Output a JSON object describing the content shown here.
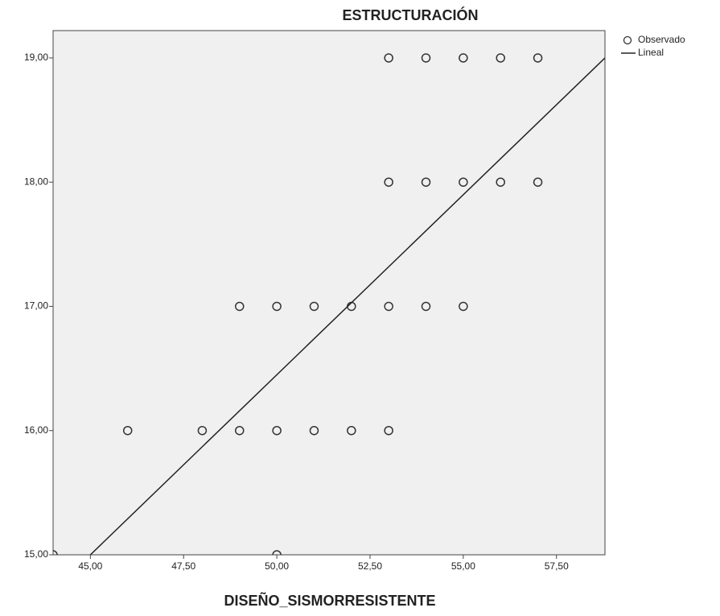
{
  "chart_data": {
    "type": "scatter",
    "title": "ESTRUCTURACIÓN",
    "x_label": "DISEÑO_SISMORRESISTENTE",
    "series": [
      {
        "name": "Observado",
        "color": "#333333",
        "x": [
          53,
          54,
          55,
          56,
          57,
          53,
          54,
          55,
          56,
          57,
          49,
          50,
          51,
          52,
          53,
          54,
          55,
          46,
          48,
          49,
          50,
          51,
          52,
          53,
          44,
          50
        ],
        "y": [
          19,
          19,
          19,
          19,
          19,
          18,
          18,
          18,
          18,
          18,
          17,
          17,
          17,
          17,
          17,
          17,
          17,
          16,
          16,
          16,
          16,
          16,
          16,
          16,
          15,
          15
        ]
      },
      {
        "name": "Lineal",
        "type": "line",
        "color": "#222222",
        "x": [
          45,
          58.8
        ],
        "y": [
          15,
          19
        ]
      }
    ],
    "xlim": [
      44,
      58.8
    ],
    "ylim": [
      15,
      19.22
    ],
    "xticks": [
      {
        "value": 45,
        "label": "45,00"
      },
      {
        "value": 47.5,
        "label": "47,50"
      },
      {
        "value": 50,
        "label": "50,00"
      },
      {
        "value": 52.5,
        "label": "52,50"
      },
      {
        "value": 55,
        "label": "55,00"
      },
      {
        "value": 57.5,
        "label": "57,50"
      }
    ],
    "yticks": [
      {
        "value": 15,
        "label": "15,00"
      },
      {
        "value": 16,
        "label": "16,00"
      },
      {
        "value": 17,
        "label": "17,00"
      },
      {
        "value": 18,
        "label": "18,00"
      },
      {
        "value": 19,
        "label": "19,00"
      }
    ],
    "background": "#f0f0f0",
    "legend": "right"
  }
}
